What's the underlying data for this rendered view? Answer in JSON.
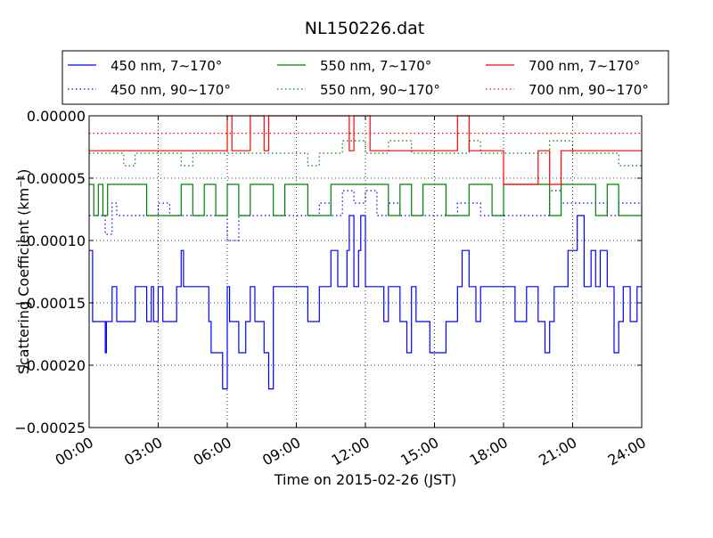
{
  "chart_data": {
    "type": "line",
    "title": "NL150226.dat",
    "xlabel": "Time on 2015-02-26 (JST)",
    "ylabel": "Scattering Coefficient (km⁻¹)",
    "xlim": [
      0,
      24
    ],
    "ylim": [
      -0.00025,
      0.0
    ],
    "x_ticks": [
      "00:00",
      "03:00",
      "06:00",
      "09:00",
      "12:00",
      "15:00",
      "18:00",
      "21:00",
      "24:00"
    ],
    "y_ticks": [
      "0.00000",
      "−0.00005",
      "−0.00010",
      "−0.00015",
      "−0.00020",
      "−0.00025"
    ],
    "grid": true,
    "legend_position": "top",
    "series": [
      {
        "name": "450 nm, 7∼170°",
        "color": "#0000ff",
        "dash": "solid",
        "x": [
          0.0,
          0.15,
          0.3,
          0.5,
          0.7,
          0.75,
          0.8,
          1.0,
          1.2,
          1.5,
          2.0,
          2.5,
          2.7,
          2.8,
          3.0,
          3.2,
          3.5,
          3.8,
          4.0,
          4.1,
          4.2,
          4.5,
          5.0,
          5.2,
          5.3,
          5.5,
          5.8,
          5.9,
          6.0,
          6.1,
          6.2,
          6.5,
          6.8,
          7.0,
          7.2,
          7.5,
          7.6,
          7.8,
          8.0,
          8.2,
          8.5,
          9.0,
          9.5,
          10.0,
          10.2,
          10.5,
          10.8,
          11.0,
          11.2,
          11.3,
          11.5,
          11.7,
          11.8,
          12.0,
          12.2,
          12.5,
          12.8,
          13.0,
          13.5,
          13.8,
          14.0,
          14.2,
          14.5,
          14.8,
          15.0,
          15.5,
          16.0,
          16.2,
          16.5,
          16.8,
          17.0,
          17.5,
          18.0,
          18.2,
          18.5,
          19.0,
          19.5,
          19.8,
          20.0,
          20.2,
          20.5,
          20.8,
          21.0,
          21.2,
          21.5,
          21.8,
          22.0,
          22.2,
          22.5,
          22.8,
          23.0,
          23.2,
          23.5,
          23.8,
          24.0
        ],
        "y": [
          -0.000108,
          -0.000165,
          -0.000165,
          -0.000165,
          -0.00019,
          -0.000165,
          -0.000165,
          -0.000137,
          -0.000165,
          -0.000165,
          -0.000137,
          -0.000165,
          -0.000137,
          -0.000165,
          -0.000137,
          -0.000165,
          -0.000165,
          -0.000137,
          -0.000108,
          -0.000137,
          -0.000137,
          -0.000137,
          -0.000137,
          -0.000165,
          -0.00019,
          -0.00019,
          -0.000219,
          -0.000219,
          -0.000137,
          -0.000165,
          -0.000165,
          -0.00019,
          -0.000165,
          -0.000137,
          -0.000165,
          -0.000165,
          -0.00019,
          -0.000219,
          -0.000137,
          -0.000137,
          -0.000137,
          -0.000137,
          -0.000165,
          -0.000137,
          -0.000137,
          -0.000108,
          -0.000137,
          -0.000137,
          -0.000108,
          -8e-05,
          -0.000137,
          -0.000108,
          -8e-05,
          -0.000137,
          -0.000137,
          -0.000137,
          -0.000165,
          -0.000137,
          -0.000165,
          -0.00019,
          -0.000137,
          -0.000165,
          -0.000165,
          -0.00019,
          -0.00019,
          -0.000165,
          -0.000137,
          -0.000108,
          -0.000137,
          -0.000165,
          -0.000137,
          -0.000137,
          -0.000137,
          -0.000137,
          -0.000165,
          -0.000137,
          -0.000165,
          -0.00019,
          -0.000165,
          -0.000137,
          -0.000137,
          -0.000108,
          -0.000108,
          -8e-05,
          -0.000137,
          -0.000108,
          -0.000137,
          -0.000108,
          -0.000137,
          -0.00019,
          -0.000165,
          -0.000137,
          -0.000165,
          -0.000137,
          -0.000137
        ]
      },
      {
        "name": "550 nm, 7∼170°",
        "color": "#008000",
        "dash": "solid",
        "x": [
          0.0,
          0.2,
          0.4,
          0.6,
          0.8,
          1.0,
          1.5,
          2.0,
          2.5,
          3.0,
          3.5,
          4.0,
          4.5,
          5.0,
          5.5,
          6.0,
          6.5,
          7.0,
          7.5,
          8.0,
          8.5,
          9.0,
          9.5,
          10.0,
          10.5,
          11.0,
          11.5,
          12.0,
          12.5,
          13.0,
          13.5,
          14.0,
          14.5,
          15.0,
          15.5,
          16.0,
          16.5,
          17.0,
          17.5,
          18.0,
          18.5,
          19.0,
          19.5,
          20.0,
          20.5,
          21.0,
          21.5,
          22.0,
          22.5,
          23.0,
          23.5,
          24.0
        ],
        "y": [
          -5.5e-05,
          -8e-05,
          -5.5e-05,
          -8e-05,
          -5.5e-05,
          -5.5e-05,
          -5.5e-05,
          -5.5e-05,
          -8e-05,
          -8e-05,
          -8e-05,
          -5.5e-05,
          -8e-05,
          -5.5e-05,
          -8e-05,
          -5.5e-05,
          -8e-05,
          -5.5e-05,
          -5.5e-05,
          -8e-05,
          -5.5e-05,
          -5.5e-05,
          -8e-05,
          -8e-05,
          -5.5e-05,
          -5.5e-05,
          -5.5e-05,
          -5.5e-05,
          -5.5e-05,
          -8e-05,
          -5.5e-05,
          -8e-05,
          -5.5e-05,
          -5.5e-05,
          -8e-05,
          -8e-05,
          -5.5e-05,
          -5.5e-05,
          -8e-05,
          -5.5e-05,
          -5.5e-05,
          -5.5e-05,
          -5.5e-05,
          -8e-05,
          -5.5e-05,
          -5.5e-05,
          -5.5e-05,
          -8e-05,
          -5.5e-05,
          -8e-05,
          -8e-05,
          -8e-05
        ]
      },
      {
        "name": "700 nm, 7∼170°",
        "color": "#ff0000",
        "dash": "solid",
        "x": [
          0.0,
          1.0,
          2.0,
          3.0,
          4.0,
          5.0,
          5.8,
          6.0,
          6.2,
          7.0,
          7.5,
          7.6,
          7.8,
          8.0,
          9.0,
          10.0,
          11.0,
          11.3,
          11.5,
          12.0,
          12.2,
          12.5,
          13.0,
          14.0,
          15.0,
          16.0,
          16.5,
          17.0,
          18.0,
          19.0,
          19.5,
          20.0,
          20.5,
          21.0,
          22.0,
          23.0,
          24.0
        ],
        "y": [
          -2.8e-05,
          -2.8e-05,
          -2.8e-05,
          -2.8e-05,
          -2.8e-05,
          -2.8e-05,
          -2.8e-05,
          0.0,
          -2.8e-05,
          0.0,
          0.0,
          -2.8e-05,
          0.0,
          0.0,
          0.0,
          0.0,
          0.0,
          -2.8e-05,
          0.0,
          0.0,
          -2.8e-05,
          -2.8e-05,
          -2.8e-05,
          -2.8e-05,
          -2.8e-05,
          0.0,
          -2.8e-05,
          -2.8e-05,
          -5.5e-05,
          -5.5e-05,
          -2.8e-05,
          -5.5e-05,
          -2.8e-05,
          -2.8e-05,
          -2.8e-05,
          -2.8e-05,
          -2.8e-05
        ]
      },
      {
        "name": "450 nm, 90∼170°",
        "color": "#0000ff",
        "dash": "dotted",
        "x": [
          0.0,
          0.5,
          0.7,
          1.0,
          1.2,
          1.5,
          2.0,
          2.5,
          3.0,
          3.5,
          4.0,
          4.5,
          5.0,
          5.5,
          6.0,
          6.5,
          7.0,
          7.5,
          8.0,
          8.5,
          9.0,
          9.5,
          10.0,
          10.5,
          11.0,
          11.5,
          12.0,
          12.5,
          13.0,
          13.5,
          14.0,
          14.5,
          15.0,
          15.5,
          16.0,
          16.5,
          17.0,
          17.5,
          18.0,
          18.5,
          19.0,
          19.5,
          20.0,
          20.5,
          21.0,
          21.5,
          22.0,
          22.5,
          23.0,
          23.5,
          24.0
        ],
        "y": [
          -8e-05,
          -8e-05,
          -9.5e-05,
          -7e-05,
          -8e-05,
          -8e-05,
          -8e-05,
          -8e-05,
          -7e-05,
          -8e-05,
          -8e-05,
          -8e-05,
          -8e-05,
          -8e-05,
          -0.0001,
          -8e-05,
          -8e-05,
          -8e-05,
          -8e-05,
          -8e-05,
          -8e-05,
          -8e-05,
          -7e-05,
          -8e-05,
          -6e-05,
          -7e-05,
          -6e-05,
          -8e-05,
          -7e-05,
          -8e-05,
          -8e-05,
          -8e-05,
          -8e-05,
          -8e-05,
          -7e-05,
          -7e-05,
          -8e-05,
          -8e-05,
          -8e-05,
          -8e-05,
          -8e-05,
          -8e-05,
          -6e-05,
          -7e-05,
          -7e-05,
          -7e-05,
          -7e-05,
          -8e-05,
          -7e-05,
          -7e-05,
          -8e-05
        ]
      },
      {
        "name": "550 nm, 90∼170°",
        "color": "#008000",
        "dash": "dotted",
        "x": [
          0.0,
          1.0,
          1.5,
          2.0,
          3.0,
          4.0,
          4.5,
          5.0,
          6.0,
          7.0,
          8.0,
          9.0,
          9.5,
          10.0,
          11.0,
          12.0,
          13.0,
          14.0,
          15.0,
          16.0,
          16.5,
          17.0,
          18.0,
          19.0,
          20.0,
          21.0,
          22.0,
          23.0,
          24.0
        ],
        "y": [
          -3e-05,
          -3e-05,
          -4e-05,
          -3e-05,
          -3e-05,
          -4e-05,
          -3e-05,
          -3e-05,
          -3e-05,
          -3e-05,
          -3e-05,
          -3e-05,
          -4e-05,
          -3e-05,
          -2e-05,
          -3e-05,
          -2e-05,
          -3e-05,
          -3e-05,
          -3e-05,
          -2e-05,
          -3e-05,
          -3e-05,
          -3e-05,
          -2e-05,
          -3e-05,
          -3e-05,
          -4e-05,
          -4e-05
        ]
      },
      {
        "name": "700 nm, 90∼170°",
        "color": "#ff0000",
        "dash": "dotted",
        "x": [
          0.0,
          6.0,
          8.0,
          12.0,
          18.0,
          20.0,
          24.0
        ],
        "y": [
          -1.4e-05,
          -1.4e-05,
          -1.4e-05,
          -1.4e-05,
          -1.4e-05,
          -1.4e-05,
          -1.4e-05
        ]
      }
    ]
  }
}
